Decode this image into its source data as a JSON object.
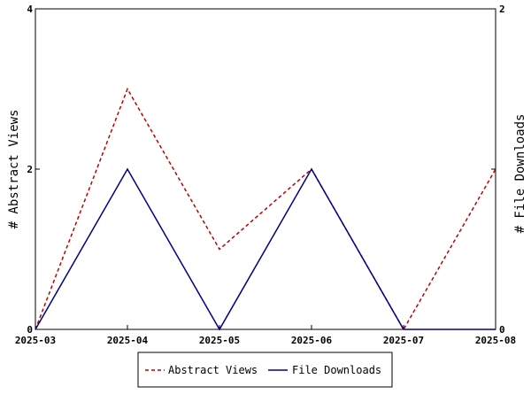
{
  "chart_data": {
    "type": "line",
    "x": [
      "2025-03",
      "2025-04",
      "2025-05",
      "2025-06",
      "2025-07",
      "2025-08"
    ],
    "series": [
      {
        "name": "Abstract Views",
        "axis": "left",
        "color": "#c00000",
        "line_style": "dashed",
        "values": [
          0,
          3,
          1,
          2,
          0,
          2
        ]
      },
      {
        "name": "File Downloads",
        "axis": "right",
        "color": "#00008b",
        "line_style": "solid",
        "values": [
          0,
          1,
          0,
          1,
          0,
          0
        ]
      }
    ],
    "y_left": {
      "label": "# Abstract Views",
      "ylim": [
        0,
        4
      ],
      "ticks": [
        0,
        2,
        4
      ]
    },
    "y_right": {
      "label": "# File Downloads",
      "ylim": [
        0,
        2
      ],
      "ticks": [
        0,
        1,
        2
      ],
      "tick_labels": [
        "0",
        "",
        "2"
      ]
    },
    "grid": false,
    "legend_position": "bottom"
  }
}
